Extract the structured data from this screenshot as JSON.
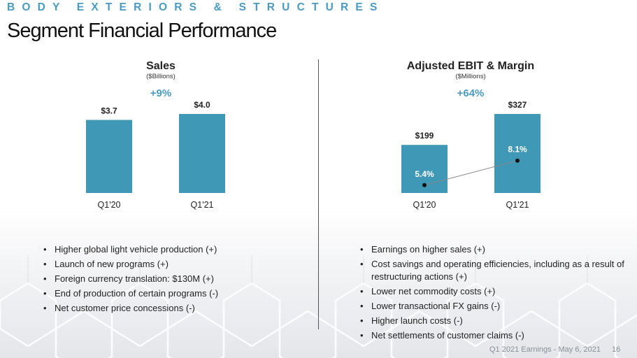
{
  "header": {
    "section": "BODY EXTERIORS & STRUCTURES",
    "title": "Segment Financial Performance"
  },
  "colors": {
    "accent": "#4a9bc3",
    "bar": "#4098b7"
  },
  "left": {
    "title": "Sales",
    "subtitle": "($Billions)",
    "growth": "+9%",
    "bullets": [
      "Higher global light vehicle production (+)",
      "Launch of new programs (+)",
      "Foreign currency translation: $130M (+)",
      "End of production of certain programs (-)",
      "Net customer price concessions (-)"
    ]
  },
  "right": {
    "title": "Adjusted EBIT & Margin",
    "subtitle": "($Millions)",
    "growth": "+64%",
    "bullets": [
      "Earnings on higher sales (+)",
      "Cost savings and operating efficiencies, including as a result of restructuring actions (+)",
      "Lower net commodity costs (+)",
      "Lower transactional FX gains (-)",
      "Higher launch costs (-)",
      "Net settlements of customer claims (-)"
    ]
  },
  "footer": {
    "text": "Q1 2021 Earnings - May 6, 2021",
    "page": "16"
  },
  "chart_data": [
    {
      "type": "bar",
      "title": "Sales",
      "subtitle": "($Billions)",
      "categories": [
        "Q1'20",
        "Q1'21"
      ],
      "values": [
        3.7,
        4.0
      ],
      "labels": [
        "$3.7",
        "$4.0"
      ],
      "ylim": [
        0,
        4.0
      ]
    },
    {
      "type": "bar",
      "title": "Adjusted EBIT & Margin",
      "subtitle": "($Millions)",
      "categories": [
        "Q1'20",
        "Q1'21"
      ],
      "values": [
        199,
        327
      ],
      "labels": [
        "$199",
        "$327"
      ],
      "ylim": [
        0,
        327
      ],
      "line_series": {
        "values": [
          5.4,
          8.1
        ],
        "labels": [
          "5.4%",
          "8.1%"
        ]
      }
    }
  ]
}
